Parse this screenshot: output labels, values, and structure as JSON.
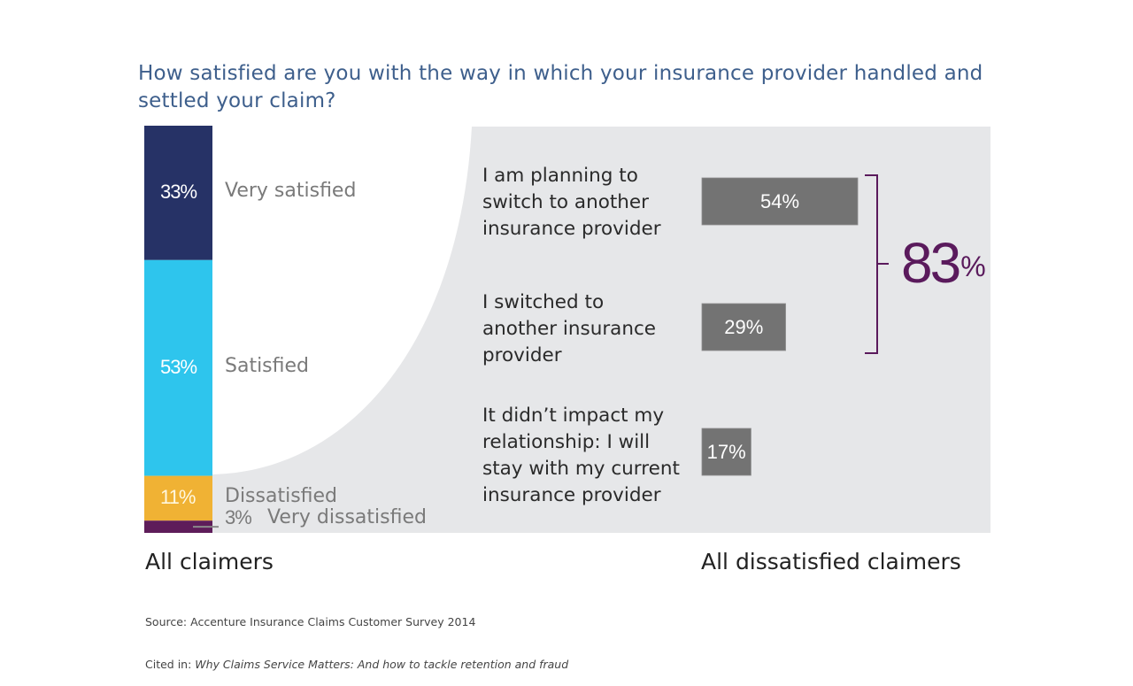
{
  "title": "How satisfied are you with the way in which your insurance provider handled and settled your claim?",
  "chart_data": [
    {
      "type": "bar",
      "subtype": "stacked-100",
      "title": "How satisfied are you with the way in which your insurance provider handled and settled your claim?",
      "xlabel": "All claimers",
      "categories": [
        "Very satisfied",
        "Satisfied",
        "Dissatisfied",
        "Very dissatisfied"
      ],
      "values": [
        33,
        53,
        11,
        3
      ],
      "value_labels": [
        "33%",
        "53%",
        "11%",
        "3%"
      ],
      "colors": [
        "#263266",
        "#2ec5ed",
        "#f0b234",
        "#5e1d5a"
      ],
      "unit": "%"
    },
    {
      "type": "bar",
      "orientation": "horizontal",
      "xlabel": "All dissatisfied claimers",
      "categories": [
        "I am planning to switch to another insurance provider",
        "I switched to another insurance provider",
        "It didn't impact my relationship: I will stay with my current insurance provider"
      ],
      "category_lines": [
        [
          "I am planning to",
          "switch to another",
          "insurance provider"
        ],
        [
          "I switched to",
          "another insurance",
          "provider"
        ],
        [
          "It didn’t impact my",
          "relationship: I will",
          "stay with my current",
          "insurance provider"
        ]
      ],
      "values": [
        54,
        29,
        17
      ],
      "value_labels": [
        "54%",
        "29%",
        "17%"
      ],
      "bar_color": "#737373",
      "annotation": {
        "text": "83",
        "suffix": "%",
        "brackets": [
          0,
          1
        ],
        "color": "#5a1a5c"
      },
      "unit": "%"
    }
  ],
  "footer": {
    "left_label": "All claimers",
    "right_label": "All dissatisfied claimers",
    "source_line": "Source: Accenture Insurance Claims Customer Survey 2014",
    "cited_prefix": "Cited in: ",
    "cited_title": "Why Claims Service Matters: And how to tackle retention and fraud"
  },
  "colors": {
    "panel_bg": "#e6e7e9",
    "title": "#3e5f8c",
    "accent_purple": "#5a1a5c"
  }
}
